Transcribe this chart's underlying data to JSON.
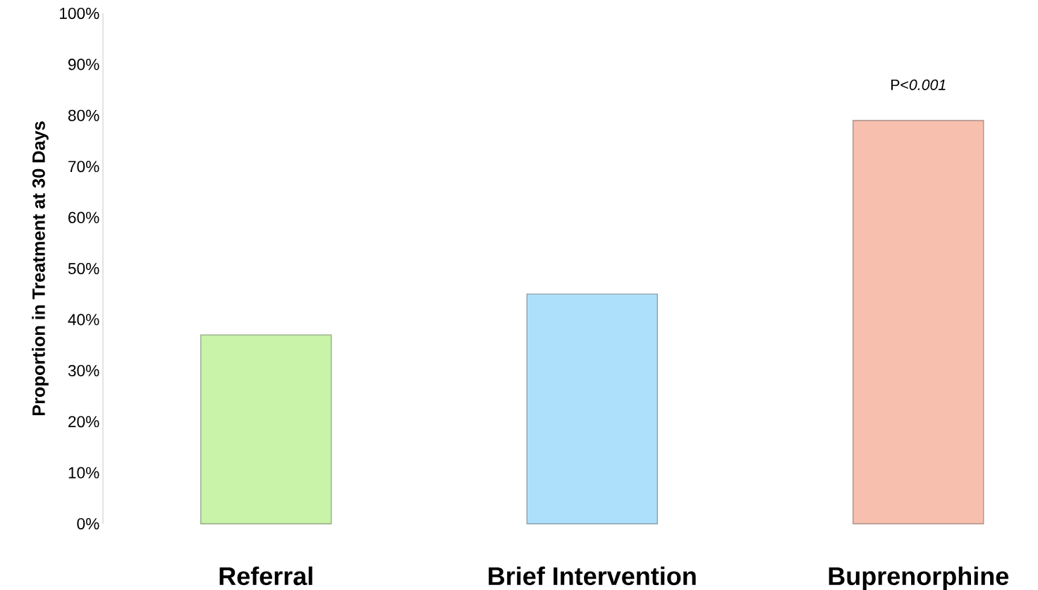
{
  "chart_data": {
    "type": "bar",
    "ylabel": "Proportion in Treatment at 30 Days",
    "categories": [
      "Referral",
      "Brief Intervention",
      "Buprenorphine"
    ],
    "values": [
      37,
      45,
      79
    ],
    "colors": [
      "#c8f3a8",
      "#ade0fa",
      "#f7bfae"
    ],
    "ylim": [
      0,
      100
    ],
    "yticks": [
      {
        "value": 0,
        "label": "0%"
      },
      {
        "value": 10,
        "label": "10%"
      },
      {
        "value": 20,
        "label": "20%"
      },
      {
        "value": 30,
        "label": "30%"
      },
      {
        "value": 40,
        "label": "40%"
      },
      {
        "value": 50,
        "label": "50%"
      },
      {
        "value": 60,
        "label": "60%"
      },
      {
        "value": 70,
        "label": "70%"
      },
      {
        "value": 80,
        "label": "80%"
      },
      {
        "value": 90,
        "label": "90%"
      },
      {
        "value": 100,
        "label": "100%"
      }
    ],
    "annotations": [
      "P<*0.001*"
    ]
  }
}
